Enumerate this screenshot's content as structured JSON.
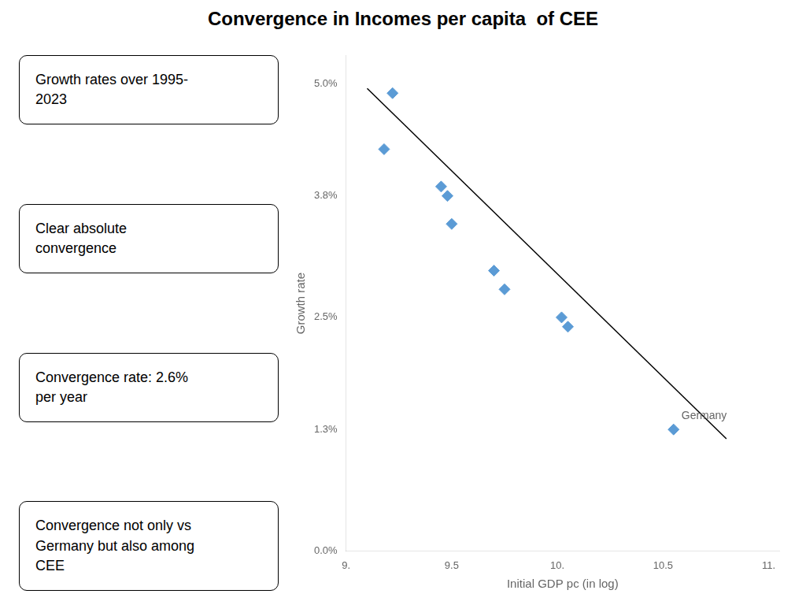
{
  "chart_data": {
    "type": "scatter",
    "title": "Convergence in Incomes per capita  of CEE",
    "x_label": "Initial GDP pc (in log)",
    "y_label": "Growth rate",
    "series": [
      {
        "type": "scatter",
        "color": "#5B9BD5",
        "marker": "diamond",
        "x": [
          9.18,
          9.22,
          9.45,
          9.48,
          9.5,
          9.7,
          9.75,
          10.02,
          10.05,
          10.55
        ],
        "values": [
          0.043,
          0.049,
          0.039,
          0.038,
          0.035,
          0.03,
          0.028,
          0.025,
          0.024,
          0.013
        ]
      },
      {
        "type": "line",
        "color": "#000000",
        "line_style": "solid",
        "x": [
          9.1,
          10.8
        ],
        "values": [
          0.0495,
          0.012
        ]
      }
    ],
    "annotations": [
      {
        "text": "Germany",
        "x": 10.55,
        "y": 0.013
      },
      {
        "text": "Growth rates over 1995-\n2023"
      },
      {
        "text": "Clear absolute\nconvergence"
      },
      {
        "text": "Convergence rate: 2.6%\nper year"
      },
      {
        "text": "Convergence not only vs\nGermany but also among\nCEE"
      }
    ],
    "xlim": [
      9.0,
      11.05
    ],
    "xticks": [
      {
        "value": 9.0,
        "label": "9."
      },
      9.5,
      {
        "value": 10.0,
        "label": "10."
      },
      10.5,
      {
        "value": 11.0,
        "label": "11."
      }
    ],
    "ylim": [
      0.0,
      0.053
    ],
    "yticks": [
      {
        "value": 0.0,
        "label": "0.0%"
      },
      {
        "value": 0.013,
        "label": "1.3%"
      },
      {
        "value": 0.025,
        "label": "2.5%"
      },
      {
        "value": 0.038,
        "label": "3.8%"
      },
      {
        "value": 0.05,
        "label": "5.0%"
      }
    ],
    "grid": false
  }
}
